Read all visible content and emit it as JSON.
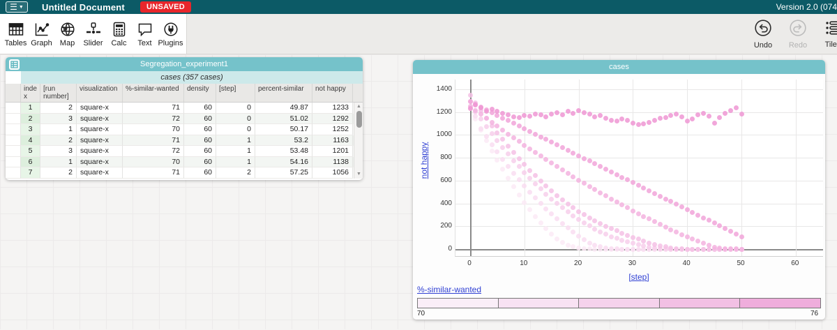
{
  "app": {
    "menubar": {
      "title": "Untitled Document",
      "unsaved": "UNSAVED",
      "version": "Version 2.0 (074"
    },
    "toolbar": {
      "items": [
        {
          "id": "tables",
          "label": "Tables",
          "icon": "tables-grid-icon"
        },
        {
          "id": "graph",
          "label": "Graph",
          "icon": "graph-chart-icon"
        },
        {
          "id": "map",
          "label": "Map",
          "icon": "globe-icon"
        },
        {
          "id": "slider",
          "label": "Slider",
          "icon": "slider-icon"
        },
        {
          "id": "calc",
          "label": "Calc",
          "icon": "calculator-icon"
        },
        {
          "id": "text",
          "label": "Text",
          "icon": "speech-bubble-icon"
        },
        {
          "id": "plugins",
          "label": "Plugins",
          "icon": "plug-icon"
        }
      ],
      "right": [
        {
          "id": "undo",
          "label": "Undo",
          "enabled": true,
          "icon": "undo-arrow-icon"
        },
        {
          "id": "redo",
          "label": "Redo",
          "enabled": false,
          "icon": "redo-arrow-icon"
        },
        {
          "id": "tiles",
          "label": "Tiles",
          "enabled": true,
          "icon": "tiles-list-icon"
        }
      ]
    }
  },
  "table": {
    "title": "Segregation_experiment1",
    "collection_label": "cases (357 cases)",
    "columns": [
      "index",
      "[run number]",
      "visualization",
      "%-similar-wanted",
      "density",
      "[step]",
      "percent-similar",
      "not happy"
    ],
    "rows": [
      [
        1,
        2,
        "square-x",
        71,
        60,
        0,
        49.87,
        1233
      ],
      [
        2,
        3,
        "square-x",
        72,
        60,
        0,
        51.02,
        1292
      ],
      [
        3,
        1,
        "square-x",
        70,
        60,
        0,
        50.17,
        1252
      ],
      [
        4,
        2,
        "square-x",
        71,
        60,
        1,
        53.2,
        1163
      ],
      [
        5,
        3,
        "square-x",
        72,
        60,
        1,
        53.48,
        1201
      ],
      [
        6,
        1,
        "square-x",
        70,
        60,
        1,
        54.16,
        1138
      ],
      [
        7,
        2,
        "square-x",
        71,
        60,
        2,
        57.25,
        1056
      ]
    ]
  },
  "graph": {
    "title": "cases",
    "y_axis": {
      "label": "not happy",
      "ticks": [
        0,
        200,
        400,
        600,
        800,
        1000,
        1200,
        1400
      ]
    },
    "x_axis": {
      "label": "[step]",
      "ticks": [
        0,
        10,
        20,
        30,
        40,
        50,
        60
      ]
    },
    "legend": {
      "label": "%-similar-wanted",
      "min_label": "70",
      "max_label": "76",
      "segment_colors": [
        "#faeef8",
        "#f8e2f3",
        "#f5d2ec",
        "#f2c0e4",
        "#efaddc"
      ]
    }
  },
  "chart_data": {
    "type": "scatter",
    "title": "cases",
    "xlabel": "[step]",
    "ylabel": "not happy",
    "xlim": [
      -5,
      65
    ],
    "ylim": [
      0,
      1500
    ],
    "grid": true,
    "legend": {
      "attribute": "%-similar-wanted",
      "min": 70,
      "max": 76,
      "position": "bottom"
    },
    "steps": [
      0,
      1,
      2,
      3,
      4,
      5,
      6,
      7,
      8,
      9,
      10,
      11,
      12,
      13,
      14,
      15,
      16,
      17,
      18,
      19,
      20,
      21,
      22,
      23,
      24,
      25,
      26,
      27,
      28,
      29,
      30,
      31,
      32,
      33,
      34,
      35,
      36,
      37,
      38,
      39,
      40,
      41,
      42,
      43,
      44,
      45,
      46,
      47,
      48,
      49,
      50
    ],
    "series": [
      {
        "name": "%-similar-wanted 70",
        "color": "#fbeaf6",
        "values": [
          1252,
          1138,
          1040,
          950,
          862,
          778,
          697,
          620,
          546,
          476,
          409,
          346,
          286,
          230,
          178,
          130,
          86,
          58,
          36,
          20,
          10,
          4,
          1,
          0,
          0,
          0,
          0,
          0,
          0,
          0,
          0,
          0,
          0,
          0,
          0,
          0,
          0,
          0,
          0,
          0,
          0,
          0,
          0,
          0,
          0,
          0,
          0,
          0,
          0,
          0,
          0
        ]
      },
      {
        "name": "%-similar-wanted 71",
        "color": "#f9ddf1",
        "values": [
          1233,
          1163,
          1056,
          985,
          916,
          850,
          786,
          724,
          664,
          607,
          551,
          498,
          447,
          398,
          351,
          306,
          264,
          223,
          185,
          149,
          115,
          84,
          55,
          35,
          20,
          10,
          4,
          1,
          0,
          0,
          0,
          0,
          0,
          0,
          0,
          0,
          0,
          0,
          0,
          0,
          0,
          0,
          0,
          0,
          0,
          0,
          0,
          0,
          0,
          0,
          0
        ]
      },
      {
        "name": "%-similar-wanted 72",
        "color": "#f7cfeb",
        "values": [
          1292,
          1201,
          1140,
          1075,
          1012,
          950,
          890,
          832,
          776,
          722,
          670,
          620,
          572,
          526,
          482,
          440,
          400,
          362,
          326,
          292,
          260,
          230,
          202,
          176,
          152,
          130,
          110,
          92,
          76,
          62,
          50,
          40,
          28,
          18,
          10,
          4,
          1,
          0,
          0,
          0,
          0,
          0,
          0,
          0,
          0,
          0,
          0,
          0,
          0,
          0,
          0
        ]
      },
      {
        "name": "%-similar-wanted 73",
        "color": "#f5c1e5",
        "values": [
          1350,
          1280,
          1212,
          1146,
          1082,
          1020,
          960,
          902,
          846,
          792,
          740,
          690,
          642,
          596,
          552,
          510,
          470,
          432,
          396,
          362,
          330,
          300,
          272,
          246,
          222,
          200,
          180,
          160,
          140,
          121,
          103,
          86,
          70,
          55,
          42,
          30,
          20,
          12,
          6,
          2,
          0,
          0,
          0,
          0,
          0,
          0,
          0,
          0,
          0,
          0,
          0
        ]
      },
      {
        "name": "%-similar-wanted 74",
        "color": "#f3b3df",
        "values": [
          1250,
          1215,
          1180,
          1145,
          1110,
          1076,
          1042,
          1008,
          975,
          942,
          910,
          878,
          846,
          815,
          784,
          753,
          723,
          693,
          663,
          634,
          605,
          576,
          548,
          520,
          493,
          466,
          439,
          413,
          387,
          361,
          336,
          311,
          287,
          263,
          239,
          216,
          193,
          171,
          149,
          128,
          107,
          87,
          68,
          50,
          33,
          18,
          10,
          5,
          2,
          1,
          0
        ]
      },
      {
        "name": "%-similar-wanted 75",
        "color": "#f1a5d9",
        "values": [
          1290,
          1266,
          1243,
          1219,
          1196,
          1172,
          1148,
          1125,
          1101,
          1078,
          1054,
          1030,
          1007,
          983,
          960,
          936,
          912,
          889,
          865,
          842,
          818,
          794,
          771,
          747,
          724,
          700,
          676,
          653,
          629,
          606,
          582,
          558,
          535,
          511,
          488,
          464,
          440,
          417,
          393,
          370,
          346,
          322,
          299,
          275,
          252,
          228,
          204,
          181,
          157,
          134,
          110
        ]
      },
      {
        "name": "%-similar-wanted 76",
        "color": "#ef97d3",
        "values": [
          1230,
          1262,
          1240,
          1210,
          1225,
          1205,
          1190,
          1175,
          1160,
          1150,
          1170,
          1165,
          1180,
          1175,
          1160,
          1185,
          1195,
          1175,
          1210,
          1190,
          1215,
          1195,
          1180,
          1160,
          1170,
          1145,
          1130,
          1120,
          1140,
          1125,
          1105,
          1090,
          1095,
          1110,
          1130,
          1145,
          1155,
          1170,
          1185,
          1160,
          1120,
          1140,
          1175,
          1190,
          1165,
          1105,
          1155,
          1190,
          1215,
          1235,
          1185
        ]
      }
    ]
  }
}
